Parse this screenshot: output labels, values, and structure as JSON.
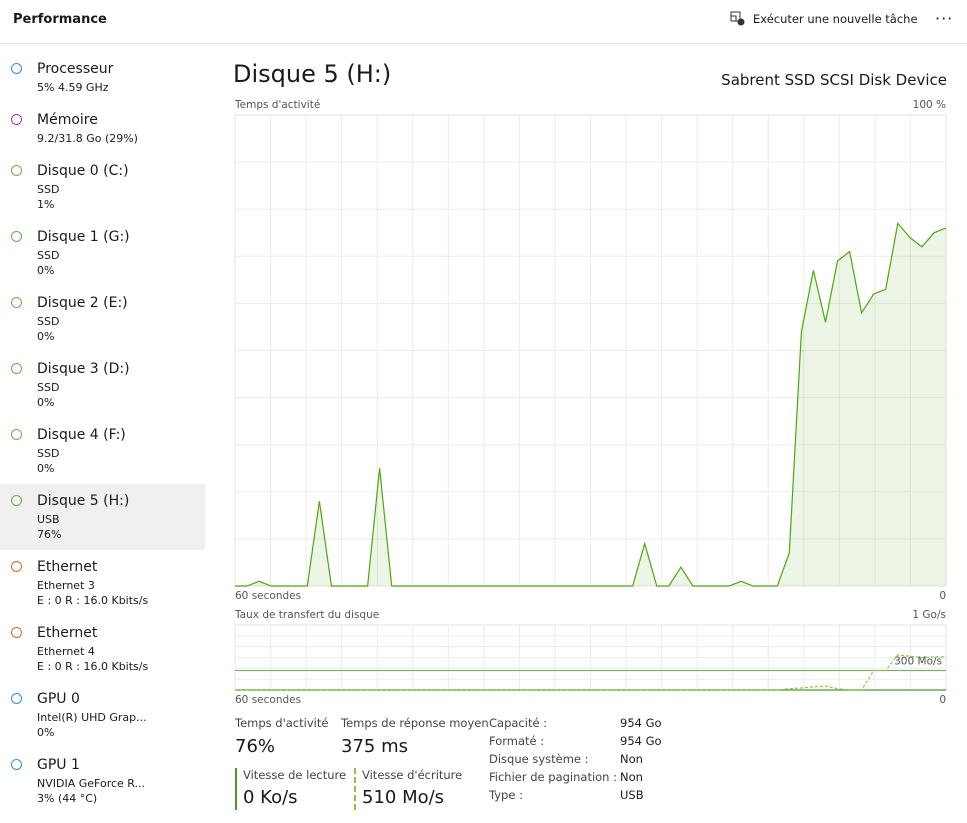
{
  "header": {
    "title": "Performance",
    "new_task": "Exécuter une nouvelle tâche"
  },
  "sidebar": [
    {
      "name": "Processeur",
      "details": [
        "5% 4.59 GHz"
      ]
    },
    {
      "name": "Mémoire",
      "details": [
        "9.2/31.8 Go (29%)"
      ]
    },
    {
      "name": "Disque 0 (C:)",
      "details": [
        "SSD",
        "1%"
      ]
    },
    {
      "name": "Disque 1 (G:)",
      "details": [
        "SSD",
        "0%"
      ]
    },
    {
      "name": "Disque 2 (E:)",
      "details": [
        "SSD",
        "0%"
      ]
    },
    {
      "name": "Disque 3 (D:)",
      "details": [
        "SSD",
        "0%"
      ]
    },
    {
      "name": "Disque 4 (F:)",
      "details": [
        "SSD",
        "0%"
      ]
    },
    {
      "name": "Disque 5 (H:)",
      "details": [
        "USB",
        "76%"
      ]
    },
    {
      "name": "Ethernet",
      "details": [
        "Ethernet 3",
        "E : 0 R : 16.0 Kbits/s"
      ]
    },
    {
      "name": "Ethernet",
      "details": [
        "Ethernet 4",
        "E : 0 R : 16.0 Kbits/s"
      ]
    },
    {
      "name": "GPU 0",
      "details": [
        "Intel(R) UHD Grap...",
        "0%"
      ]
    },
    {
      "name": "GPU 1",
      "details": [
        "NVIDIA GeForce R...",
        "3% (44 °C)"
      ]
    }
  ],
  "main": {
    "title": "Disque 5 (H:)",
    "device": "Sabrent SSD SCSI Disk Device"
  },
  "chart_data": [
    {
      "type": "area",
      "title": "Temps d'activité",
      "x_label": "60 secondes",
      "color": "#4ca80c",
      "grid": true,
      "ylim": [
        0,
        100
      ],
      "yticks": [
        0,
        {
          "value": 100,
          "label": "100 %"
        }
      ],
      "values": [
        0,
        0,
        1,
        0,
        0,
        0,
        0,
        18,
        0,
        0,
        0,
        0,
        25,
        0,
        0,
        0,
        0,
        0,
        0,
        0,
        0,
        0,
        0,
        0,
        0,
        0,
        0,
        0,
        0,
        0,
        0,
        0,
        0,
        0,
        9,
        0,
        0,
        4,
        0,
        0,
        0,
        0,
        1,
        0,
        0,
        0,
        7,
        54,
        67,
        56,
        69,
        71,
        58,
        62,
        63,
        77,
        74,
        72,
        75,
        76
      ]
    },
    {
      "type": "line",
      "title": "Taux de transfert du disque",
      "x_label": "60 secondes",
      "grid": true,
      "ylim": [
        0,
        1000
      ],
      "yticks": [
        0,
        {
          "value": 1000,
          "label": "1 Go/s"
        }
      ],
      "reference": {
        "value": 300,
        "label": "300 Mo/s"
      },
      "series": [
        {
          "color": "#4c9a2a",
          "dashed": false,
          "values": [
            0,
            0,
            0,
            0,
            0,
            0,
            0,
            0,
            0,
            0,
            0,
            0,
            0,
            0,
            0,
            0,
            0,
            0,
            0,
            0,
            0,
            0,
            0,
            0,
            0,
            0,
            0,
            0,
            0,
            0,
            0,
            0,
            0,
            0,
            0,
            0,
            0,
            0,
            0,
            0,
            0,
            0,
            0,
            0,
            0,
            0,
            0,
            0,
            0,
            0,
            0,
            0,
            0,
            0,
            0,
            0,
            0,
            0,
            0,
            0
          ]
        },
        {
          "color": "#8cc63f",
          "dashed": true,
          "values": [
            0,
            0,
            0,
            0,
            0,
            0,
            0,
            0,
            0,
            0,
            0,
            0,
            0,
            0,
            0,
            0,
            0,
            0,
            0,
            0,
            0,
            0,
            0,
            0,
            0,
            0,
            0,
            0,
            0,
            0,
            0,
            0,
            0,
            0,
            0,
            0,
            0,
            0,
            0,
            0,
            0,
            0,
            0,
            0,
            0,
            0,
            20,
            30,
            50,
            60,
            20,
            0,
            0,
            300,
            300,
            540,
            520,
            500,
            510,
            510
          ]
        }
      ]
    }
  ],
  "stats": [
    {
      "label": "Temps d'activité",
      "value": "76%"
    },
    {
      "label": "Temps de réponse moyen",
      "value": "375 ms"
    }
  ],
  "speeds": [
    {
      "label": "Vitesse de lecture",
      "value": "0 Ko/s"
    },
    {
      "label": "Vitesse d'écriture",
      "value": "510 Mo/s"
    }
  ],
  "properties": [
    {
      "label": "Capacité :",
      "value": "954 Go"
    },
    {
      "label": "Formaté :",
      "value": "954 Go"
    },
    {
      "label": "Disque système :",
      "value": "Non"
    },
    {
      "label": "Fichier de pagination :",
      "value": "Non"
    },
    {
      "label": "Type :",
      "value": "USB"
    }
  ]
}
